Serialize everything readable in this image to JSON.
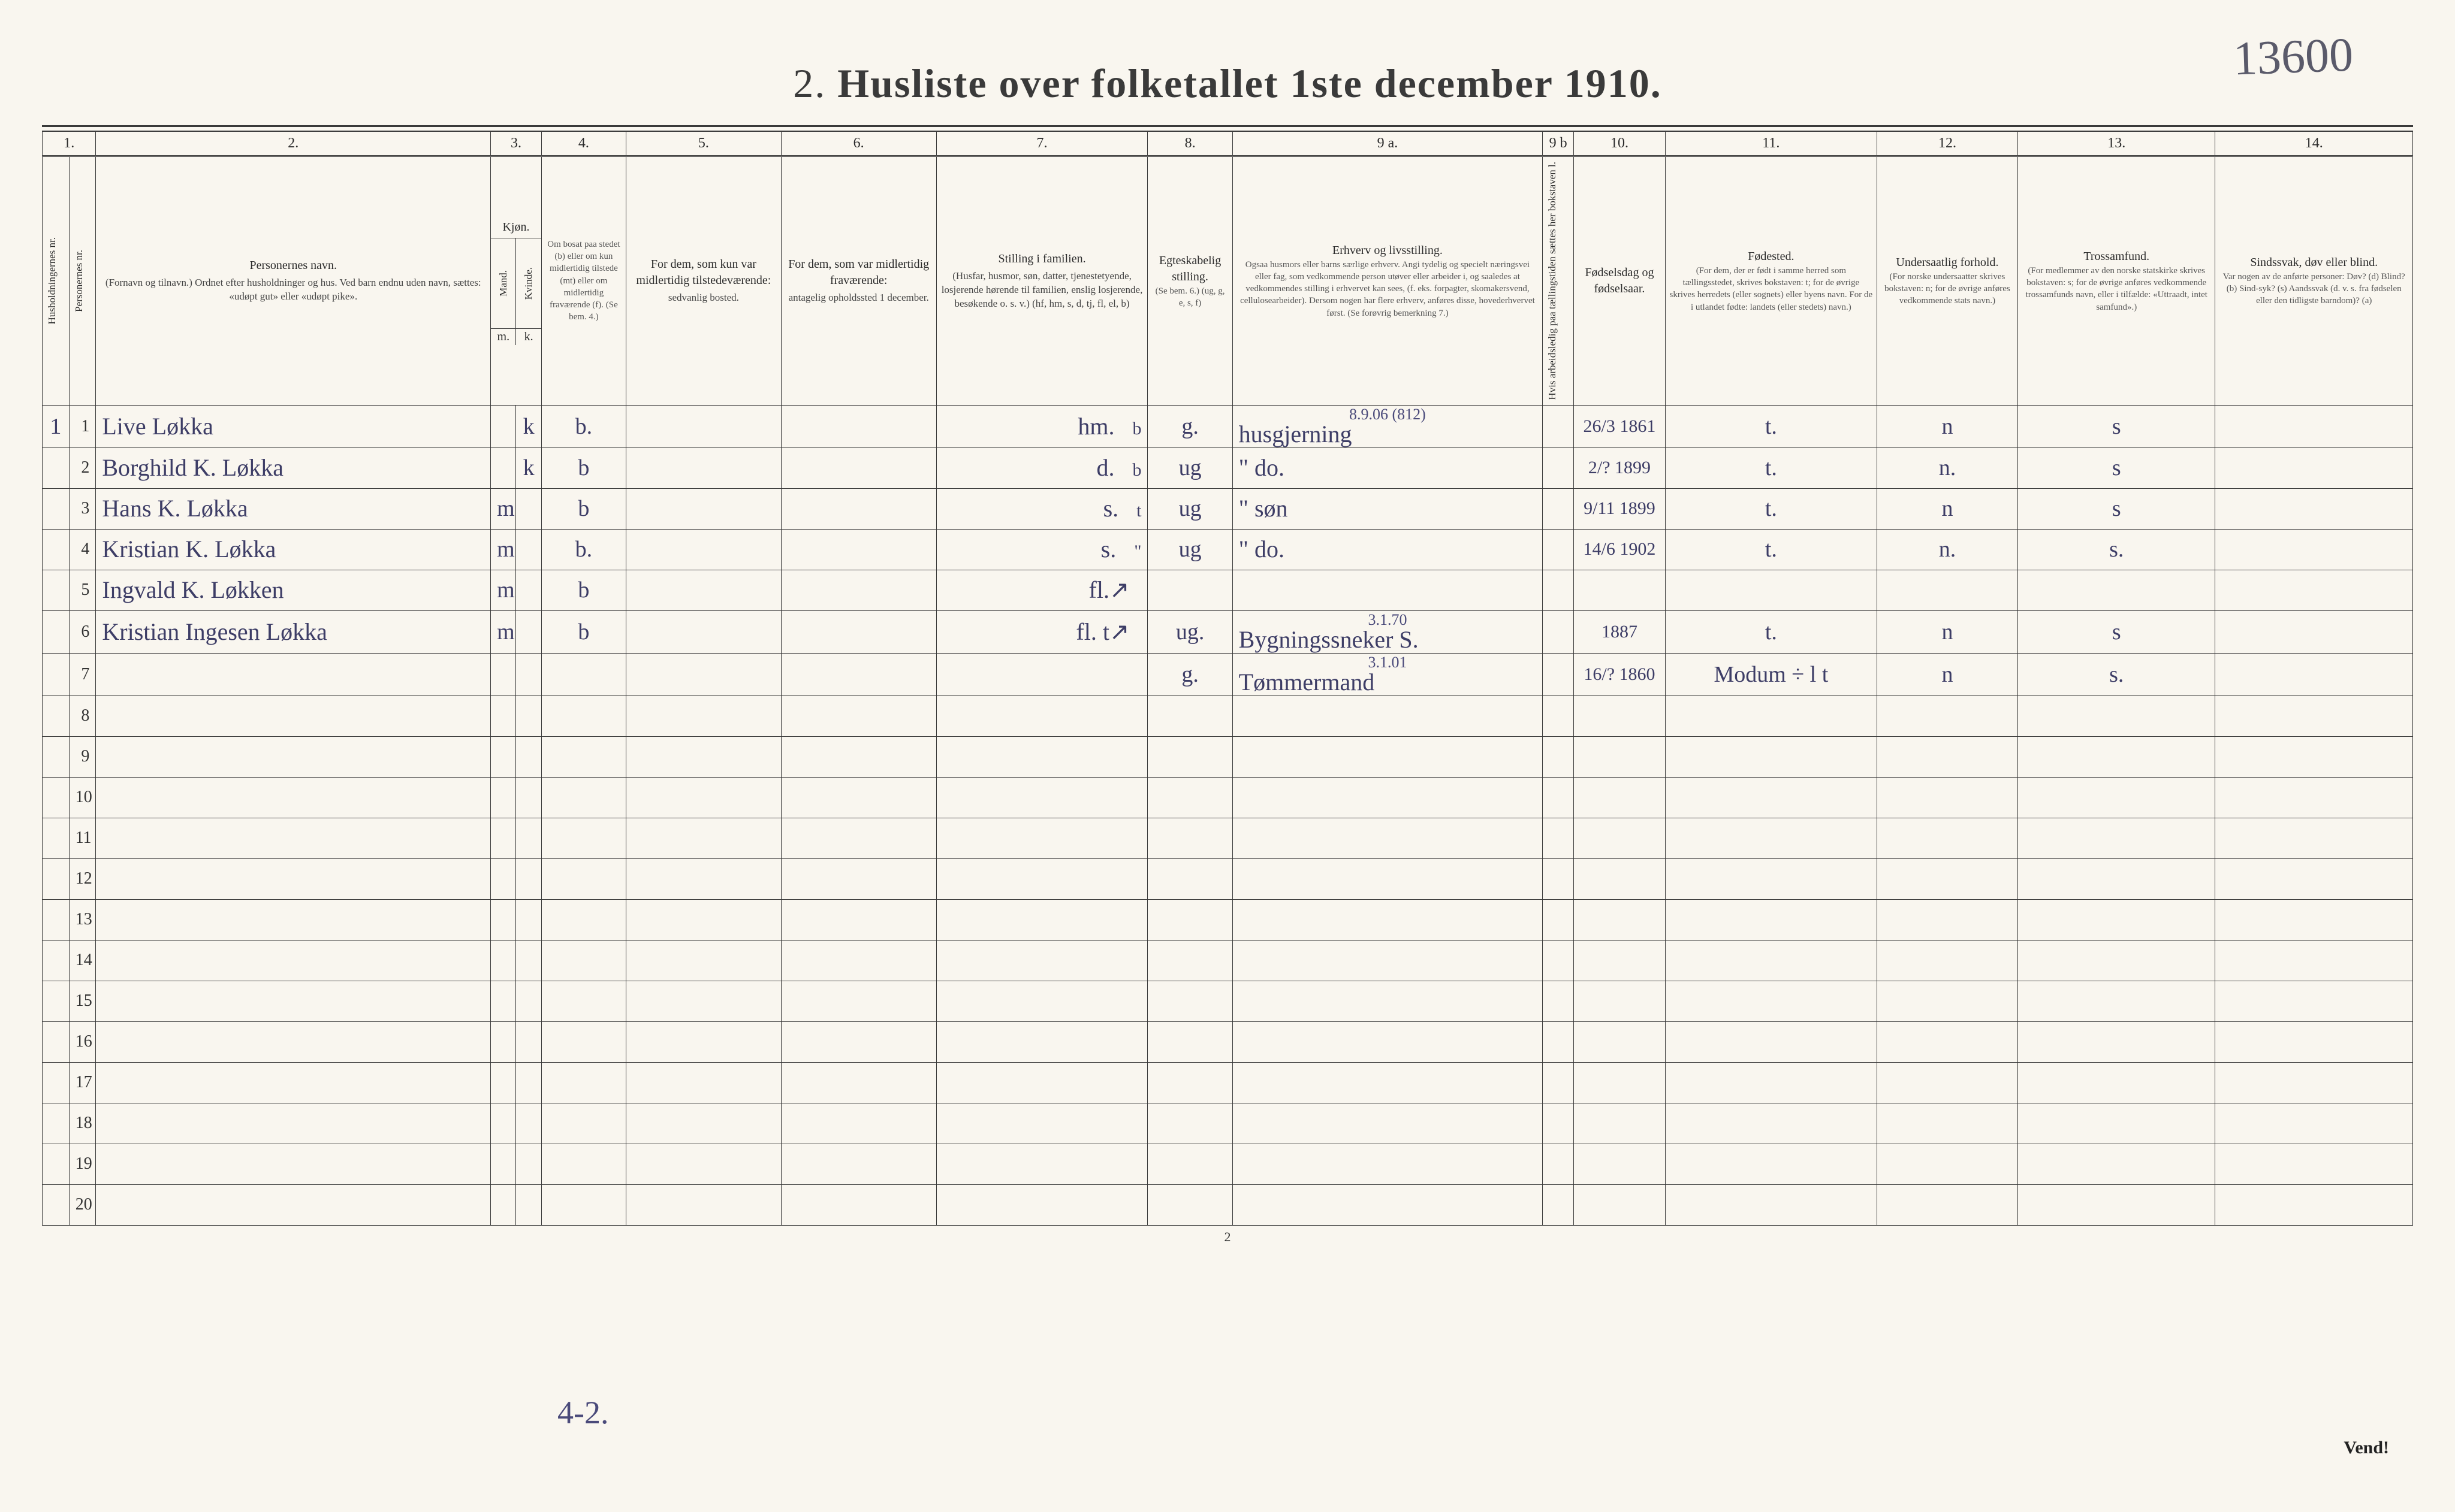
{
  "corner_annotation": "13600",
  "title_number": "2.",
  "title_text": "Husliste over folketallet 1ste december 1910.",
  "column_numbers": [
    "1.",
    "2.",
    "3.",
    "4.",
    "5.",
    "6.",
    "7.",
    "8.",
    "9 a.",
    "9 b",
    "10.",
    "11.",
    "12.",
    "13.",
    "14."
  ],
  "headers": {
    "col1_a": "Husholdningernes nr.",
    "col1_b": "Personernes nr.",
    "col2": "Personernes navn.",
    "col2_sub": "(Fornavn og tilnavn.)\nOrdnet efter husholdninger og hus.\nVed barn endnu uden navn, sættes: «udøpt gut» eller «udøpt pike».",
    "col3": "Kjøn.",
    "col3_m": "Mand.",
    "col3_k": "Kvinde.",
    "col4": "Om bosat paa stedet (b) eller om kun midlertidig tilstede (mt) eller om midlertidig fraværende (f). (Se bem. 4.)",
    "col5": "For dem, som kun var midlertidig tilstedeværende:",
    "col5_sub": "sedvanlig bosted.",
    "col6": "For dem, som var midlertidig fraværende:",
    "col6_sub": "antagelig opholdssted 1 december.",
    "col7": "Stilling i familien.",
    "col7_sub": "(Husfar, husmor, søn, datter, tjenestetyende, losjerende hørende til familien, enslig losjerende, besøkende o. s. v.)\n(hf, hm, s, d, tj, fl, el, b)",
    "col8": "Egteskabelig stilling.",
    "col8_sub": "(Se bem. 6.)\n(ug, g, e, s, f)",
    "col9a": "Erhverv og livsstilling.",
    "col9a_sub": "Ogsaa husmors eller barns særlige erhverv. Angi tydelig og specielt næringsvei eller fag, som vedkommende person utøver eller arbeider i, og saaledes at vedkommendes stilling i erhvervet kan sees, (f. eks. forpagter, skomakersvend, cellulosearbeider). Dersom nogen har flere erhverv, anføres disse, hovederhvervet først. (Se forøvrig bemerkning 7.)",
    "col9b": "Hvis arbeidsledig paa tællingstiden sættes her bokstaven l.",
    "col10": "Fødselsdag og fødselsaar.",
    "col11": "Fødested.",
    "col11_sub": "(For dem, der er født i samme herred som tællingsstedet, skrives bokstaven: t; for de øvrige skrives herredets (eller sognets) eller byens navn. For de i utlandet fødte: landets (eller stedets) navn.)",
    "col12": "Undersaatlig forhold.",
    "col12_sub": "(For norske undersaatter skrives bokstaven: n; for de øvrige anføres vedkommende stats navn.)",
    "col13": "Trossamfund.",
    "col13_sub": "(For medlemmer av den norske statskirke skrives bokstaven: s; for de øvrige anføres vedkommende trossamfunds navn, eller i tilfælde: «Uttraadt, intet samfund».)",
    "col14": "Sindssvak, døv eller blind.",
    "col14_sub": "Var nogen av de anførte personer:\nDøv? (d)\nBlind? (b)\nSind-syk? (s)\nAandssvak (d. v. s. fra fødselen eller den tidligste barndom)? (a)"
  },
  "row_labels": [
    "1",
    "2",
    "3",
    "4",
    "5",
    "6",
    "7",
    "8",
    "9",
    "10",
    "11",
    "12",
    "13",
    "14",
    "15",
    "16",
    "17",
    "18",
    "19",
    "20"
  ],
  "rows": [
    {
      "hh": "1",
      "name": "Live Løkka",
      "m": "",
      "k": "k",
      "bos": "b.",
      "c5": "",
      "c6": "",
      "fam": "hm.",
      "fam2": "b",
      "egt": "g.",
      "erhverv_top": "8.9.06   (812)",
      "erhverv": "husgjerning",
      "c9b": "",
      "fods": "26/3 1861",
      "fsted": "t.",
      "und": "n",
      "tro": "s",
      "c14": ""
    },
    {
      "hh": "",
      "name": "Borghild K. Løkka",
      "m": "",
      "k": "k",
      "bos": "b",
      "c5": "",
      "c6": "",
      "fam": "d.",
      "fam2": "b",
      "egt": "ug",
      "erhverv": "\"    do.",
      "c9b": "",
      "fods": "2/? 1899",
      "fsted": "t.",
      "und": "n.",
      "tro": "s",
      "c14": ""
    },
    {
      "hh": "",
      "name": "Hans K. Løkka",
      "m": "m",
      "k": "",
      "bos": "b",
      "c5": "",
      "c6": "",
      "fam": "s.",
      "fam2": "t",
      "egt": "ug",
      "erhverv": "\"    søn",
      "c9b": "",
      "fods": "9/11 1899",
      "fsted": "t.",
      "und": "n",
      "tro": "s",
      "c14": ""
    },
    {
      "hh": "",
      "name": "Kristian K. Løkka",
      "m": "m",
      "k": "",
      "bos": "b.",
      "c5": "",
      "c6": "",
      "fam": "s.",
      "fam2": "\"",
      "egt": "ug",
      "erhverv": "\"    do.",
      "c9b": "",
      "fods": "14/6 1902",
      "fsted": "t.",
      "und": "n.",
      "tro": "s.",
      "c14": ""
    },
    {
      "hh": "",
      "name": "Ingvald K. Løkken",
      "m": "m",
      "k": "",
      "bos": "b",
      "c5": "",
      "c6": "",
      "fam": "fl.↗",
      "fam2": "",
      "egt": "",
      "erhverv": "",
      "c9b": "",
      "fods": "",
      "fsted": "",
      "und": "",
      "tro": "",
      "c14": ""
    },
    {
      "hh": "",
      "name": "Kristian Ingesen Løkka",
      "m": "m",
      "k": "",
      "bos": "b",
      "c5": "",
      "c6": "",
      "fam": "fl. t↗",
      "fam2": "",
      "egt": "ug.",
      "erhverv_top": "3.1.70",
      "erhverv": "Bygningssneker S.",
      "c9b": "",
      "fods": "1887",
      "fsted": "t.",
      "und": "n",
      "tro": "s",
      "c14": ""
    },
    {
      "hh": "",
      "name": "",
      "m": "",
      "k": "",
      "bos": "",
      "c5": "",
      "c6": "",
      "fam": "",
      "fam2": "",
      "egt": "g.",
      "erhverv_top": "3.1.01",
      "erhverv": "Tømmermand",
      "c9b": "",
      "fods": "16/? 1860",
      "fsted": "Modum ÷ l t",
      "und": "n",
      "tro": "s.",
      "c14": ""
    }
  ],
  "footer_pagenum": "2",
  "bottom_handnote": "4-2.",
  "vend": "Vend!",
  "colors": {
    "paper": "#f9f6ef",
    "ink": "#3a3a3a",
    "handwriting": "#3d3d66"
  }
}
